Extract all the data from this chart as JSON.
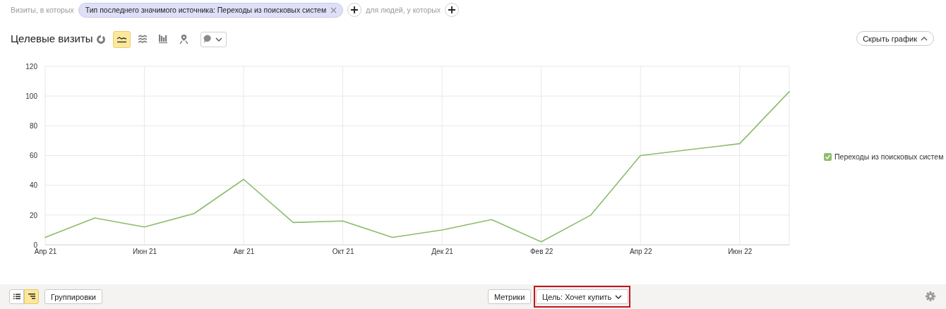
{
  "chart_data": {
    "type": "line",
    "title": "Целевые визиты",
    "categories": [
      "Апр 21",
      null,
      "Июн 21",
      null,
      "Авг 21",
      null,
      "Окт 21",
      null,
      "Дек 21",
      null,
      "Фев 22",
      null,
      "Апр 22",
      null,
      "Июн 22",
      null
    ],
    "series": [
      {
        "name": "Переходы из поисковых систем",
        "color": "#8cbc6c",
        "values": [
          5,
          18,
          12,
          21,
          44,
          15,
          16,
          5,
          10,
          17,
          2,
          20,
          60,
          64,
          68,
          103
        ]
      }
    ],
    "ylim": [
      0,
      120
    ],
    "yticks": [
      0,
      20,
      40,
      60,
      80,
      100,
      120
    ],
    "grid": true,
    "legend": "right",
    "annotations": [
      "Визиты, в которых",
      "Тип последнего значимого источника: Переходы из поисковых систем",
      "для людей, у которых",
      "Скрыть график",
      "Группировки",
      "Метрики",
      "Цель: Хочет купить"
    ]
  }
}
